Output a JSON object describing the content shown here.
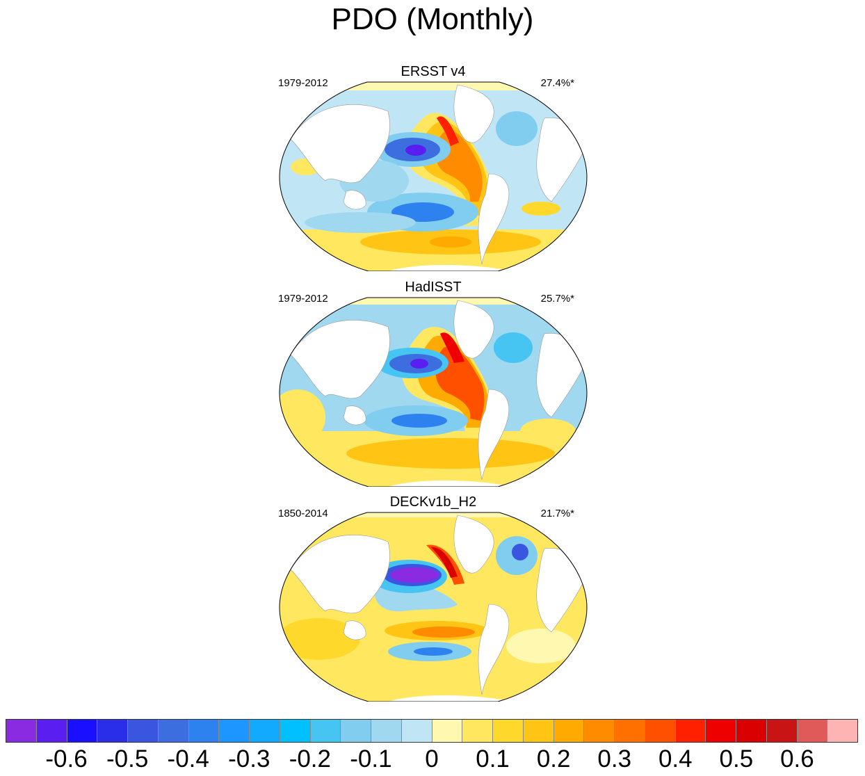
{
  "title": "PDO (Monthly)",
  "panels": [
    {
      "name": "ERSST v4",
      "period": "1979-2012",
      "variance": "27.4%*"
    },
    {
      "name": "HadISST",
      "period": "1979-2012",
      "variance": "25.7%*"
    },
    {
      "name": "DECKv1b_H2",
      "period": "1850-2014",
      "variance": "21.7%*"
    }
  ],
  "colorbar": {
    "colors": [
      "#8a2be2",
      "#5a1ef0",
      "#1a10ff",
      "#2a2ee8",
      "#3a55e0",
      "#3c6ee0",
      "#2e82f0",
      "#1e96ff",
      "#12aaff",
      "#00c0ff",
      "#46c4f2",
      "#80cdf0",
      "#a0d8f0",
      "#c0e6f6",
      "#fff8b0",
      "#ffe860",
      "#ffd82c",
      "#ffc414",
      "#ffaa00",
      "#ff8c00",
      "#ff7000",
      "#ff5000",
      "#ff2000",
      "#ee0000",
      "#d80000",
      "#c81414",
      "#e05a5a",
      "#ffb4b4"
    ],
    "labels": [
      "-0.6",
      "-0.5",
      "-0.4",
      "-0.3",
      "-0.2",
      "-0.1",
      "0",
      "0.1",
      "0.2",
      "0.3",
      "0.4",
      "0.5",
      "0.6"
    ]
  }
}
